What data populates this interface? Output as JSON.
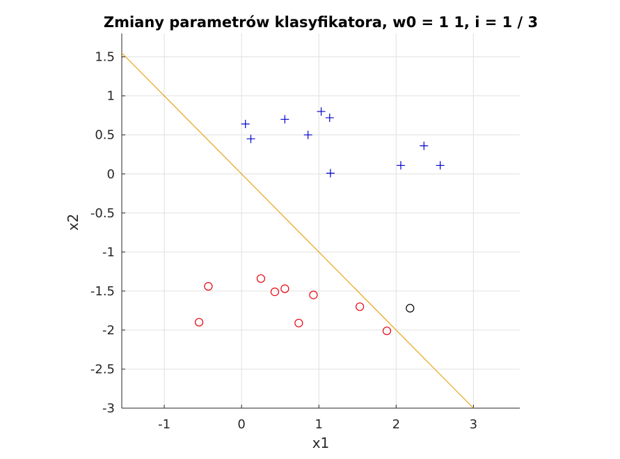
{
  "chart_data": {
    "type": "scatter",
    "title": "Zmiany parametrów klasyfikatora, w0 = 1  1, i = 1 / 3",
    "xlabel": "x1",
    "ylabel": "x2",
    "xlim": [
      -1.55,
      3.6
    ],
    "ylim": [
      -3,
      1.8
    ],
    "xticks": [
      -1,
      0,
      1,
      2,
      3
    ],
    "xtick_labels": [
      "-1",
      "0",
      "1",
      "2",
      "3"
    ],
    "yticks": [
      1.5,
      1,
      0.5,
      0,
      -0.5,
      -1,
      -1.5,
      -2,
      -2.5,
      -3
    ],
    "ytick_labels": [
      "1.5",
      "1",
      "0.5",
      "0",
      "-0.5",
      "-1",
      "-1.5",
      "-2",
      "-2.5",
      "-3"
    ],
    "grid": true,
    "series": [
      {
        "marker": "plus",
        "color": "#0000cc",
        "points": [
          [
            0.05,
            0.64
          ],
          [
            0.12,
            0.45
          ],
          [
            0.56,
            0.7
          ],
          [
            0.86,
            0.5
          ],
          [
            1.03,
            0.8
          ],
          [
            1.14,
            0.72
          ],
          [
            1.15,
            0.01
          ],
          [
            2.06,
            0.11
          ],
          [
            2.36,
            0.36
          ],
          [
            2.57,
            0.11
          ]
        ]
      },
      {
        "marker": "circle",
        "color": "#e8000b",
        "points": [
          [
            -0.55,
            -1.9
          ],
          [
            -0.43,
            -1.44
          ],
          [
            0.25,
            -1.34
          ],
          [
            0.43,
            -1.51
          ],
          [
            0.56,
            -1.47
          ],
          [
            0.74,
            -1.91
          ],
          [
            0.93,
            -1.55
          ],
          [
            1.53,
            -1.7
          ],
          [
            1.88,
            -2.01
          ]
        ]
      },
      {
        "marker": "circle",
        "color": "#000000",
        "points": [
          [
            2.18,
            -1.72
          ]
        ]
      }
    ],
    "decision_line": {
      "color": "#e8a317",
      "points": [
        [
          -1.55,
          1.55
        ],
        [
          3.0,
          -3.0
        ]
      ]
    }
  }
}
